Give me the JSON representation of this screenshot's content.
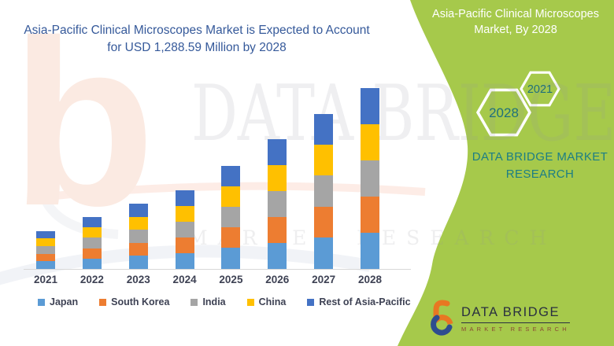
{
  "header": {
    "title_line1": "Asia-Pacific Clinical Microscopes Market is Expected to Account",
    "title_line2": "for USD 1,288.59 Million by 2028"
  },
  "side_panel": {
    "background_color": "#A6C94B",
    "text_color": "#1C7E85",
    "title_line1": "Asia-Pacific Clinical Microscopes",
    "title_line2": "Market, By 2028",
    "hexagons": [
      {
        "label": "2028"
      },
      {
        "label": "2021"
      }
    ],
    "brand_line1": "DATA BRIDGE MARKET",
    "brand_line2": "RESEARCH"
  },
  "watermark": {
    "big_text": "DATA BRIDGE",
    "spaced_text": "MARKET RESEARCH",
    "letter_b": "b"
  },
  "footer_logo": {
    "name": "DATA BRIDGE",
    "subtitle": "MARKET RESEARCH"
  },
  "chart_data": {
    "type": "bar",
    "stacked": true,
    "title": "Asia-Pacific Clinical Microscopes Market, USD Million",
    "xlabel": "",
    "ylabel": "",
    "unit": "USD Million",
    "y_axis_shown": false,
    "grid": false,
    "legend_position": "bottom",
    "categories": [
      "2021",
      "2022",
      "2023",
      "2024",
      "2025",
      "2026",
      "2027",
      "2028"
    ],
    "series": [
      {
        "name": "Japan",
        "color": "#5B9BD5",
        "values": [
          56,
          75,
          94,
          113,
          150,
          187,
          223,
          259
        ]
      },
      {
        "name": "South Korea",
        "color": "#ED7D31",
        "values": [
          52,
          73,
          92,
          111,
          146,
          184,
          220,
          256
        ]
      },
      {
        "name": "India",
        "color": "#A5A5A5",
        "values": [
          54,
          74,
          93,
          112,
          147,
          185,
          221,
          258
        ]
      },
      {
        "name": "China",
        "color": "#FFC000",
        "values": [
          55,
          74,
          93,
          112,
          145,
          185,
          221,
          257
        ]
      },
      {
        "name": "Rest of Asia-Pacific",
        "color": "#4472C4",
        "values": [
          53,
          74,
          93,
          112,
          147,
          184,
          220,
          258.59
        ]
      }
    ],
    "totals": [
      270,
      370,
      465,
      560,
      735,
      925,
      1105,
      1288.59
    ],
    "note": "No y-axis labels shown; series values estimated from bar heights, anchored to the stated 2028 total of USD 1,288.59 Million."
  }
}
